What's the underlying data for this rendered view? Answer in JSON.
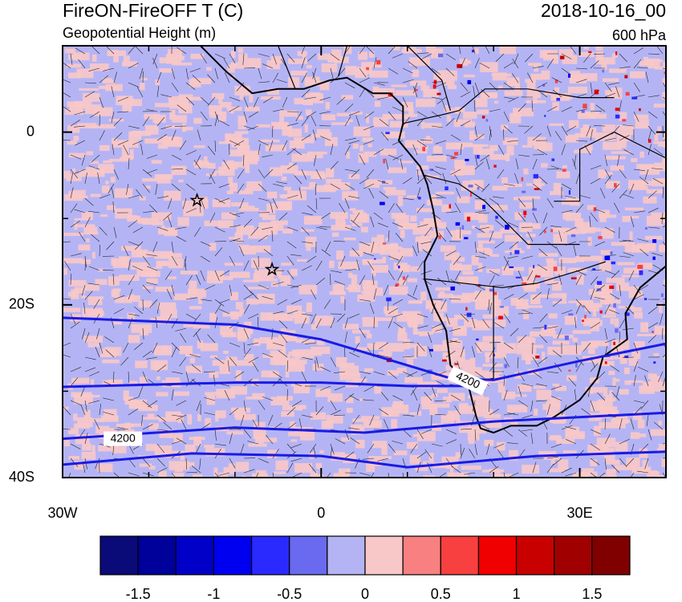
{
  "header": {
    "title": "FireON-FireOFF T (C)",
    "subtitle": "Geopotential Height (m)",
    "date": "2018-10-16_00",
    "level": "600 hPa"
  },
  "map": {
    "xlim": [
      -30,
      40
    ],
    "ylim": [
      -40,
      10
    ],
    "xticks": [
      {
        "value": -30,
        "label": "30W"
      },
      {
        "value": 0,
        "label": "0"
      },
      {
        "value": 30,
        "label": "30E"
      }
    ],
    "yticks": [
      {
        "value": 0,
        "label": "0"
      },
      {
        "value": -20,
        "label": "20S"
      },
      {
        "value": -40,
        "label": "40S"
      }
    ],
    "x_minor_ticks": [
      -20,
      -10,
      10,
      20,
      40
    ],
    "y_minor_ticks": [
      -30,
      -10
    ],
    "contour_color": "#1a1ae6",
    "contour_labels": [
      "4200",
      "4200"
    ]
  },
  "colorbar": {
    "colors": [
      "#0a0a78",
      "#00009a",
      "#0000c8",
      "#0000f0",
      "#2a2aff",
      "#6a6af0",
      "#b4b4f5",
      "#f8c8c8",
      "#f88080",
      "#f84040",
      "#f00000",
      "#c80000",
      "#a00000",
      "#800000"
    ],
    "ticks": [
      -1.5,
      -1,
      -0.5,
      0,
      0.5,
      1,
      1.5
    ]
  }
}
